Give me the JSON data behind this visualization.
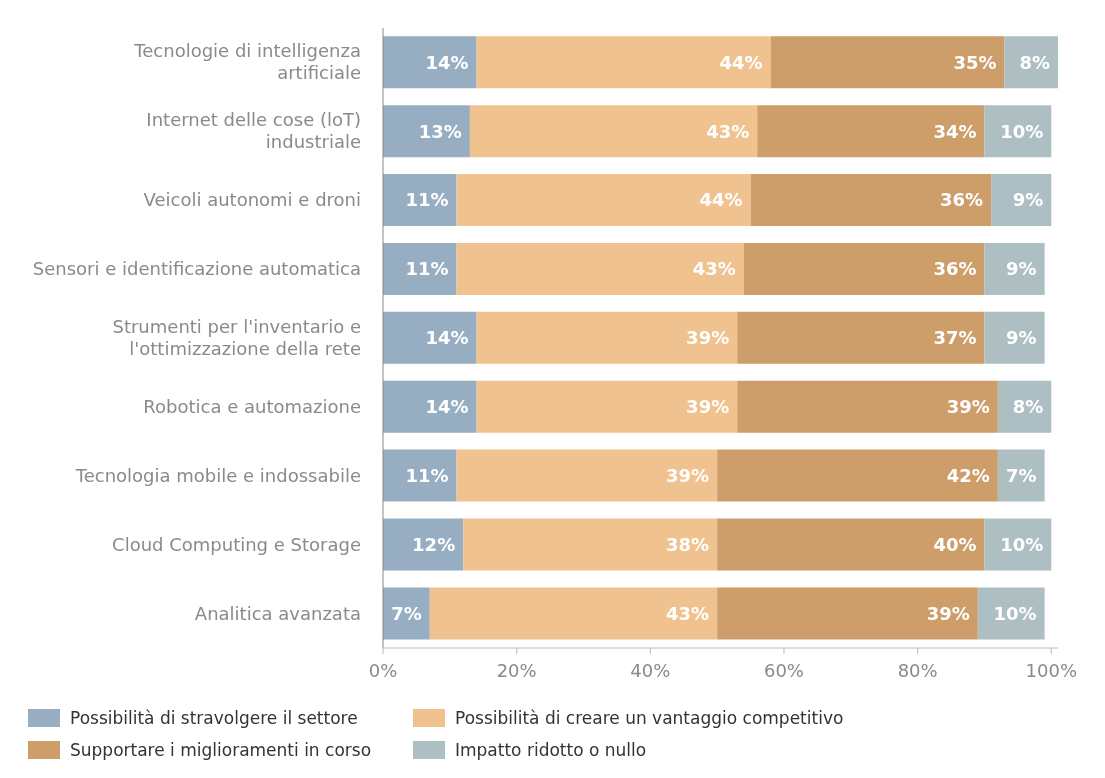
{
  "chart_data": {
    "type": "bar",
    "orientation": "horizontal",
    "stacked": true,
    "legend": "bottom",
    "grid": false,
    "categories": [
      "Tecnologie di intelligenza artificiale",
      "Internet delle cose (loT) industriale",
      "Veicoli autonomi e droni",
      "Sensori e identificazione automatica",
      "Strumenti per l'inventario e l'ottimizzazione della rete",
      "Robotica e automazione",
      "Tecnologia mobile e indossabile",
      "Cloud Computing e Storage",
      "Analitica avanzata"
    ],
    "series": [
      {
        "name": "Possibilità di stravolgere il settore",
        "color": "#97adc1",
        "values": [
          14,
          13,
          11,
          11,
          14,
          14,
          11,
          12,
          7
        ],
        "value_labels": [
          "14%",
          "13%",
          "11%",
          "11%",
          "14%",
          "14%",
          "11%",
          "12%",
          "7%"
        ]
      },
      {
        "name": "Possibilità di creare un vantaggio competitivo",
        "color": "#efc28f",
        "values": [
          44,
          43,
          44,
          43,
          39,
          39,
          39,
          38,
          43
        ],
        "value_labels": [
          "44%",
          "43%",
          "44%",
          "43%",
          "39%",
          "39%",
          "39%",
          "38%",
          "43%"
        ]
      },
      {
        "name": "Supportare i miglioramenti in corso",
        "color": "#cd9d6a",
        "values": [
          35,
          34,
          36,
          36,
          37,
          39,
          42,
          40,
          39
        ],
        "value_labels": [
          "35%",
          "34%",
          "36%",
          "36%",
          "37%",
          "39%",
          "42%",
          "40%",
          "39%"
        ]
      },
      {
        "name": "Impatto ridotto o nullo",
        "color": "#adbfc2",
        "values": [
          8,
          10,
          9,
          9,
          9,
          8,
          7,
          10,
          10
        ],
        "value_labels": [
          "8%",
          "10%",
          "9%",
          "9%",
          "9%",
          "8%",
          "7%",
          "10%",
          "10%"
        ]
      }
    ],
    "xlim": [
      0,
      101
    ],
    "xticks": [
      {
        "value": 0,
        "label": "0%"
      },
      {
        "value": 20,
        "label": "20%"
      },
      {
        "value": 40,
        "label": "40%"
      },
      {
        "value": 60,
        "label": "60%"
      },
      {
        "value": 80,
        "label": "80%"
      },
      {
        "value": 100,
        "label": "100%"
      }
    ]
  }
}
